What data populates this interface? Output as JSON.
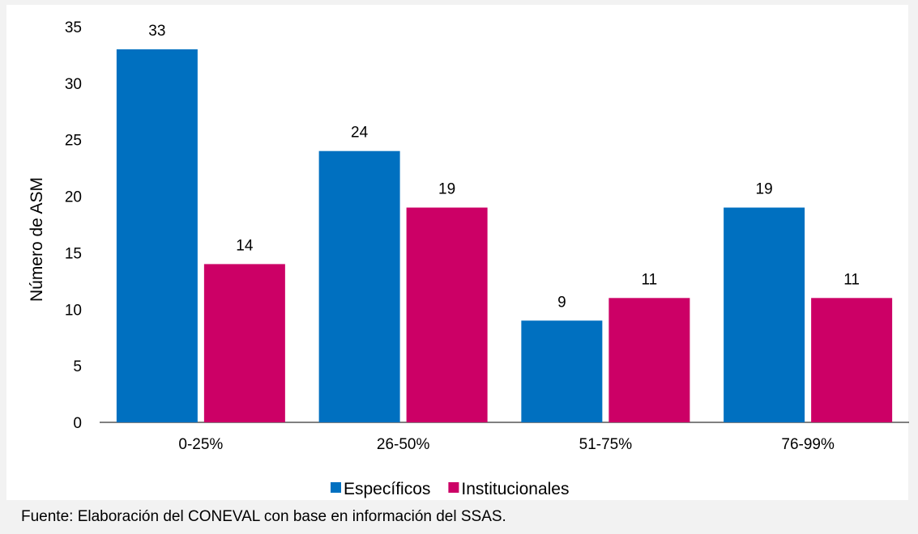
{
  "chart_data": {
    "type": "bar",
    "title": "",
    "xlabel": "",
    "ylabel": "Número de ASM",
    "ylim": [
      0,
      35
    ],
    "yticks": [
      0,
      5,
      10,
      15,
      20,
      25,
      30,
      35
    ],
    "categories": [
      "0-25%",
      "26-50%",
      "51-75%",
      "76-99%"
    ],
    "series": [
      {
        "name": "Específicos",
        "color": "#0070c0",
        "values": [
          33,
          24,
          9,
          19
        ]
      },
      {
        "name": "Institucionales",
        "color": "#cc0066",
        "values": [
          14,
          19,
          11,
          11
        ]
      }
    ],
    "legend_position": "bottom",
    "grid": false
  },
  "source_note": "Fuente: Elaboración del CONEVAL con base en información del SSAS."
}
